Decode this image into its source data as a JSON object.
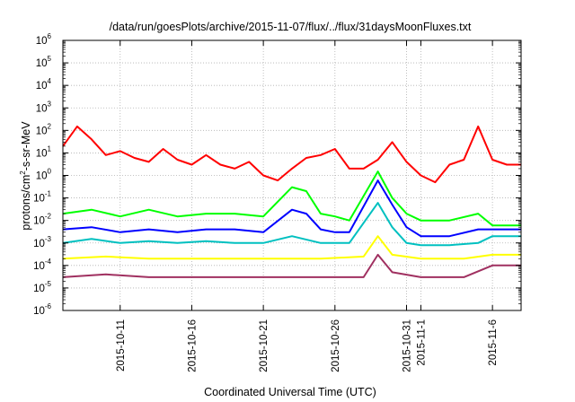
{
  "chart_data": {
    "type": "line",
    "title": "/data/run/goesPlots/archive/2015-11-07/flux/../flux/31daysMoonFluxes.txt",
    "xlabel": "Coordinated Universal Time (UTC)",
    "ylabel": "protons/cm2-s-sr-MeV",
    "ylabel_parts": {
      "pre": "protons/cm",
      "sup": "2",
      "post": "-s-sr-MeV"
    },
    "y_scale": "log",
    "ylim": [
      1e-06,
      1000000.0
    ],
    "y_ticks": [
      {
        "base": "10",
        "exp": "-6",
        "value": 1e-06
      },
      {
        "base": "10",
        "exp": "-5",
        "value": 1e-05
      },
      {
        "base": "10",
        "exp": "-4",
        "value": 0.0001
      },
      {
        "base": "10",
        "exp": "-3",
        "value": 0.001
      },
      {
        "base": "10",
        "exp": "-2",
        "value": 0.01
      },
      {
        "base": "10",
        "exp": "-1",
        "value": 0.1
      },
      {
        "base": "10",
        "exp": "0",
        "value": 1
      },
      {
        "base": "10",
        "exp": "1",
        "value": 10
      },
      {
        "base": "10",
        "exp": "2",
        "value": 100
      },
      {
        "base": "10",
        "exp": "3",
        "value": 1000
      },
      {
        "base": "10",
        "exp": "4",
        "value": 10000
      },
      {
        "base": "10",
        "exp": "5",
        "value": 100000
      },
      {
        "base": "10",
        "exp": "6",
        "value": 1000000
      }
    ],
    "xlim": [
      "2015-10-07",
      "2015-11-08"
    ],
    "x_ticks": [
      {
        "label": "2015-10-11",
        "date": "2015-10-11"
      },
      {
        "label": "2015-10-16",
        "date": "2015-10-16"
      },
      {
        "label": "2015-10-21",
        "date": "2015-10-21"
      },
      {
        "label": "2015-10-26",
        "date": "2015-10-26"
      },
      {
        "label": "2015-10-31",
        "date": "2015-10-31"
      },
      {
        "label": "2015-11-1",
        "date": "2015-11-01"
      },
      {
        "label": "2015-11-6",
        "date": "2015-11-06"
      }
    ],
    "grid": true,
    "series": [
      {
        "color": "#ff0000",
        "x": [
          "2015-10-07",
          "2015-10-08",
          "2015-10-09",
          "2015-10-10",
          "2015-10-11",
          "2015-10-12",
          "2015-10-13",
          "2015-10-14",
          "2015-10-15",
          "2015-10-16",
          "2015-10-17",
          "2015-10-18",
          "2015-10-19",
          "2015-10-20",
          "2015-10-21",
          "2015-10-22",
          "2015-10-23",
          "2015-10-24",
          "2015-10-25",
          "2015-10-26",
          "2015-10-27",
          "2015-10-28",
          "2015-10-29",
          "2015-10-30",
          "2015-10-31",
          "2015-11-01",
          "2015-11-02",
          "2015-11-03",
          "2015-11-04",
          "2015-11-05",
          "2015-11-06",
          "2015-11-07",
          "2015-11-08"
        ],
        "y": [
          20,
          150,
          40,
          8,
          12,
          6,
          4,
          15,
          5,
          3,
          8,
          3,
          2,
          4,
          1,
          0.6,
          2,
          6,
          8,
          15,
          2,
          2,
          5,
          30,
          4,
          1,
          0.5,
          3,
          5,
          150,
          5,
          3,
          3
        ]
      },
      {
        "color": "#00ff00",
        "x": [
          "2015-10-07",
          "2015-10-09",
          "2015-10-11",
          "2015-10-13",
          "2015-10-15",
          "2015-10-17",
          "2015-10-19",
          "2015-10-21",
          "2015-10-23",
          "2015-10-24",
          "2015-10-25",
          "2015-10-26",
          "2015-10-27",
          "2015-10-29",
          "2015-10-30",
          "2015-10-31",
          "2015-11-01",
          "2015-11-03",
          "2015-11-05",
          "2015-11-06",
          "2015-11-07",
          "2015-11-08"
        ],
        "y": [
          0.02,
          0.03,
          0.015,
          0.03,
          0.015,
          0.02,
          0.02,
          0.015,
          0.3,
          0.2,
          0.02,
          0.015,
          0.01,
          1.5,
          0.1,
          0.02,
          0.01,
          0.01,
          0.02,
          0.006,
          0.006,
          0.006
        ]
      },
      {
        "color": "#0000ff",
        "x": [
          "2015-10-07",
          "2015-10-09",
          "2015-10-11",
          "2015-10-13",
          "2015-10-15",
          "2015-10-17",
          "2015-10-19",
          "2015-10-21",
          "2015-10-23",
          "2015-10-24",
          "2015-10-25",
          "2015-10-26",
          "2015-10-27",
          "2015-10-29",
          "2015-10-30",
          "2015-10-31",
          "2015-11-01",
          "2015-11-03",
          "2015-11-05",
          "2015-11-06",
          "2015-11-07",
          "2015-11-08"
        ],
        "y": [
          0.004,
          0.005,
          0.003,
          0.004,
          0.003,
          0.004,
          0.004,
          0.003,
          0.03,
          0.02,
          0.004,
          0.003,
          0.003,
          0.6,
          0.05,
          0.005,
          0.002,
          0.002,
          0.004,
          0.004,
          0.004,
          0.004
        ]
      },
      {
        "color": "#00c0c0",
        "x": [
          "2015-10-07",
          "2015-10-09",
          "2015-10-11",
          "2015-10-13",
          "2015-10-15",
          "2015-10-17",
          "2015-10-19",
          "2015-10-21",
          "2015-10-23",
          "2015-10-25",
          "2015-10-27",
          "2015-10-29",
          "2015-10-30",
          "2015-10-31",
          "2015-11-01",
          "2015-11-03",
          "2015-11-05",
          "2015-11-06",
          "2015-11-07",
          "2015-11-08"
        ],
        "y": [
          0.001,
          0.0015,
          0.001,
          0.0012,
          0.001,
          0.0012,
          0.001,
          0.001,
          0.002,
          0.001,
          0.001,
          0.06,
          0.005,
          0.001,
          0.0008,
          0.0008,
          0.001,
          0.002,
          0.002,
          0.002
        ]
      },
      {
        "color": "#ffff00",
        "x": [
          "2015-10-07",
          "2015-10-10",
          "2015-10-13",
          "2015-10-16",
          "2015-10-19",
          "2015-10-22",
          "2015-10-25",
          "2015-10-28",
          "2015-10-29",
          "2015-10-30",
          "2015-11-01",
          "2015-11-04",
          "2015-11-06",
          "2015-11-07",
          "2015-11-08"
        ],
        "y": [
          0.0002,
          0.00025,
          0.0002,
          0.0002,
          0.0002,
          0.0002,
          0.0002,
          0.00025,
          0.002,
          0.0003,
          0.0002,
          0.0002,
          0.0003,
          0.0003,
          0.0003
        ]
      },
      {
        "color": "#a03060",
        "x": [
          "2015-10-07",
          "2015-10-10",
          "2015-10-13",
          "2015-10-16",
          "2015-10-19",
          "2015-10-22",
          "2015-10-25",
          "2015-10-28",
          "2015-10-29",
          "2015-10-30",
          "2015-11-01",
          "2015-11-04",
          "2015-11-06",
          "2015-11-07",
          "2015-11-08"
        ],
        "y": [
          3e-05,
          4e-05,
          3e-05,
          3e-05,
          3e-05,
          3e-05,
          3e-05,
          3e-05,
          0.0003,
          5e-05,
          3e-05,
          3e-05,
          0.0001,
          0.0001,
          0.0001
        ]
      }
    ]
  }
}
